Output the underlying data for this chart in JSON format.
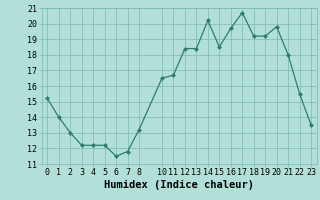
{
  "x": [
    0,
    1,
    2,
    3,
    4,
    5,
    6,
    7,
    8,
    10,
    11,
    12,
    13,
    14,
    15,
    16,
    17,
    18,
    19,
    20,
    21,
    22,
    23
  ],
  "y": [
    15.2,
    14.0,
    13.0,
    12.2,
    12.2,
    12.2,
    11.5,
    11.8,
    13.2,
    16.5,
    16.7,
    18.4,
    18.4,
    20.2,
    18.5,
    19.7,
    20.7,
    19.2,
    19.2,
    19.8,
    18.0,
    15.5,
    13.5
  ],
  "line_color": "#2e7d6e",
  "bg_color": "#b2e0d8",
  "grid_color": "#7ab8b0",
  "xlabel": "Humidex (Indice chaleur)",
  "xlim": [
    -0.5,
    23.5
  ],
  "ylim": [
    11,
    21
  ],
  "yticks": [
    11,
    12,
    13,
    14,
    15,
    16,
    17,
    18,
    19,
    20,
    21
  ],
  "xticks": [
    0,
    1,
    2,
    3,
    4,
    5,
    6,
    7,
    8,
    10,
    11,
    12,
    13,
    14,
    15,
    16,
    17,
    18,
    19,
    20,
    21,
    22,
    23
  ],
  "label_fontsize": 7.5,
  "tick_fontsize": 6.0
}
